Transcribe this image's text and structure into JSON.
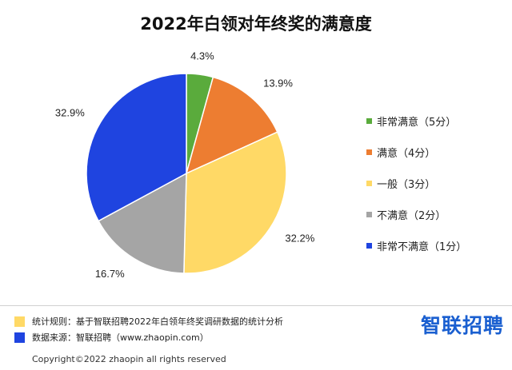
{
  "title": "2022年白领对年终奖的满意度",
  "chart_data": {
    "type": "pie",
    "categories": [
      "非常满意（5分）",
      "满意（4分）",
      "一般（3分）",
      "不满意（2分）",
      "非常不满意（1分）"
    ],
    "values": [
      4.3,
      13.9,
      32.2,
      16.7,
      32.9
    ],
    "labels": [
      "4.3%",
      "13.9%",
      "32.2%",
      "16.7%",
      "32.9%"
    ],
    "colors": [
      "#5aab3c",
      "#ed7d31",
      "#ffd966",
      "#a5a5a5",
      "#1f44e0"
    ],
    "legend_position": "right",
    "start": "12 o'clock, clockwise"
  },
  "footer": {
    "rule_label": "统计规则：基于智联招聘2022年白领年终奖调研数据的统计分析",
    "rule_color": "#ffd966",
    "source_label": "数据来源：智联招聘（www.zhaopin.com）",
    "source_color": "#1f44e0",
    "brand": "智联招聘",
    "brand_color": "#1a5fd0",
    "copyright": "Copyright©2022 zhaopin all rights reserved"
  }
}
